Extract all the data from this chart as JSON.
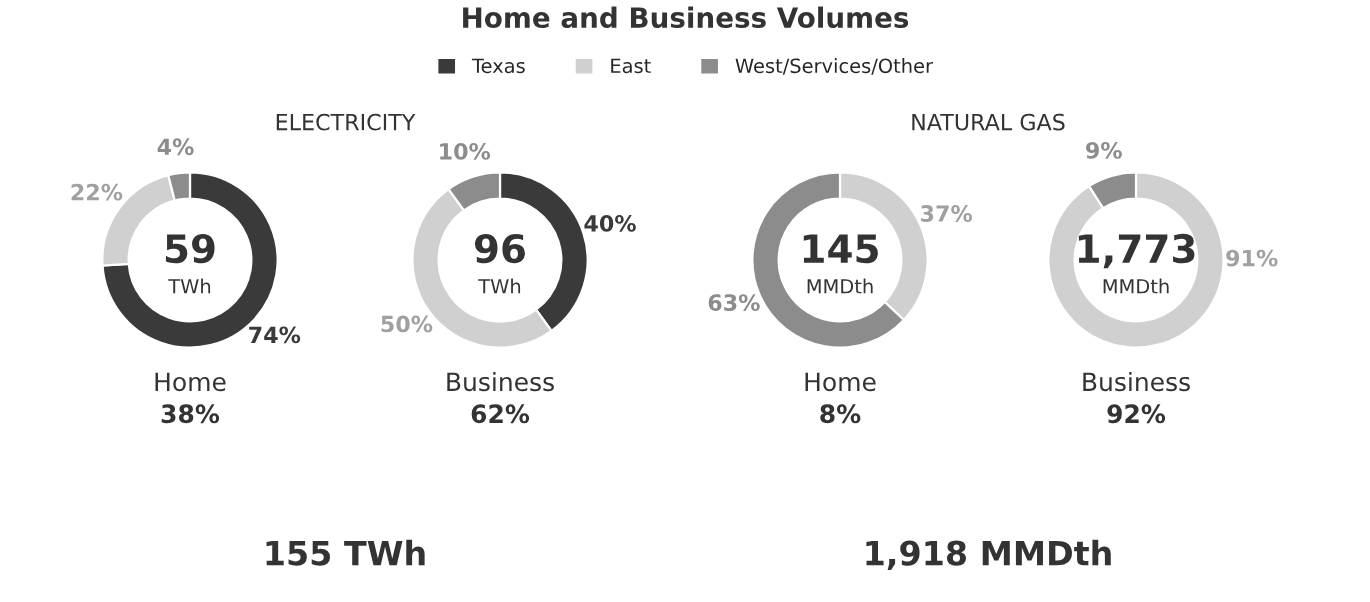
{
  "chart_data": [
    {
      "type": "donut",
      "title": "Home and Business Volumes",
      "legend": "top",
      "categories": [
        "Texas",
        "East",
        "West/Services/Other"
      ],
      "values": [
        74,
        22,
        4
      ],
      "colors": [
        "#3a3a3a",
        "#d0d0d0",
        "#8c8c8c"
      ],
      "value_labels": [
        "74%",
        "22%",
        "4%"
      ],
      "annotations": [
        "59",
        "TWh",
        "Home",
        "38%",
        "ELECTRICITY",
        "155 TWh"
      ]
    },
    {
      "type": "donut",
      "categories": [
        null,
        null,
        null
      ],
      "values": [
        40,
        50,
        10
      ],
      "colors": [
        "#3a3a3a",
        "#d0d0d0",
        "#8c8c8c"
      ],
      "value_labels": [
        "40%",
        "50%",
        "10%"
      ],
      "annotations": [
        "96",
        "TWh",
        "Business",
        "62%"
      ]
    },
    {
      "type": "donut",
      "categories": [
        null,
        null
      ],
      "values": [
        37,
        63
      ],
      "colors": [
        "#d0d0d0",
        "#8c8c8c"
      ],
      "value_labels": [
        "37%",
        "63%"
      ],
      "annotations": [
        "145",
        "MMDth",
        "Home",
        "8%",
        "NATURAL GAS",
        "1,918 MMDth"
      ]
    },
    {
      "type": "donut",
      "categories": [
        null,
        null
      ],
      "values": [
        91,
        9
      ],
      "colors": [
        "#d0d0d0",
        "#8c8c8c"
      ],
      "value_labels": [
        "91%",
        "9%"
      ],
      "annotations": [
        "1,773",
        "MMDth",
        "Business",
        "92%"
      ]
    }
  ]
}
